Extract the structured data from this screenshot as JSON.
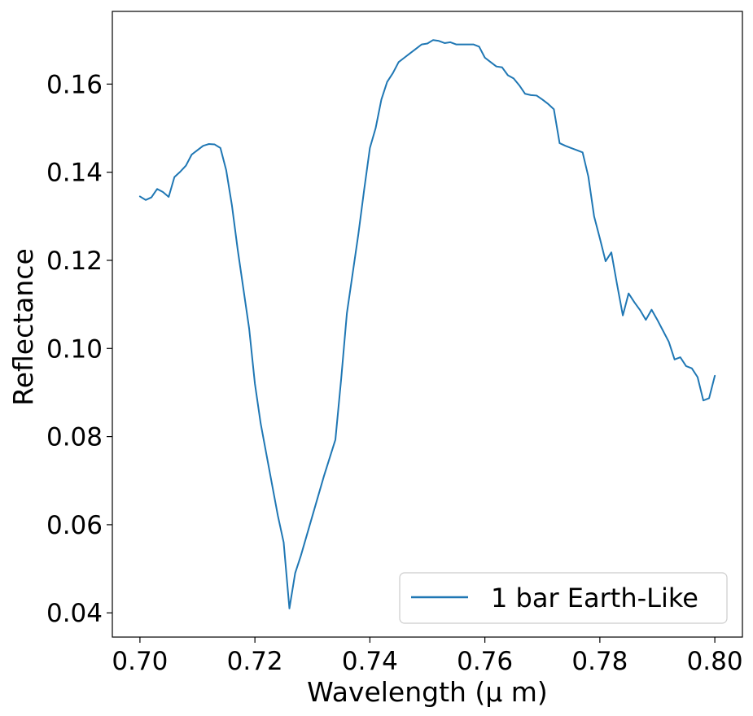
{
  "chart_data": {
    "type": "line",
    "xlabel": "Wavelength (μ m)",
    "ylabel": "Reflectance",
    "xlim": [
      0.6952,
      0.8048
    ],
    "ylim": [
      0.0345,
      0.1765
    ],
    "xticks": [
      "0.70",
      "0.72",
      "0.74",
      "0.76",
      "0.78",
      "0.80"
    ],
    "yticks": [
      "0.04",
      "0.06",
      "0.08",
      "0.10",
      "0.12",
      "0.14",
      "0.16"
    ],
    "grid": false,
    "legend_position": "bottom-right",
    "line_color": "#1f77b4",
    "series": [
      {
        "name": "1 bar Earth-Like",
        "x": [
          0.7,
          0.701,
          0.702,
          0.703,
          0.704,
          0.705,
          0.706,
          0.707,
          0.708,
          0.709,
          0.71,
          0.711,
          0.712,
          0.713,
          0.714,
          0.715,
          0.716,
          0.717,
          0.718,
          0.719,
          0.72,
          0.721,
          0.722,
          0.723,
          0.724,
          0.725,
          0.726,
          0.727,
          0.728,
          0.73,
          0.732,
          0.734,
          0.735,
          0.736,
          0.737,
          0.738,
          0.739,
          0.74,
          0.741,
          0.742,
          0.743,
          0.744,
          0.745,
          0.746,
          0.747,
          0.748,
          0.749,
          0.75,
          0.751,
          0.752,
          0.753,
          0.754,
          0.755,
          0.756,
          0.757,
          0.758,
          0.759,
          0.76,
          0.761,
          0.762,
          0.763,
          0.764,
          0.765,
          0.766,
          0.767,
          0.768,
          0.769,
          0.77,
          0.771,
          0.772,
          0.773,
          0.774,
          0.775,
          0.776,
          0.777,
          0.778,
          0.779,
          0.78,
          0.781,
          0.782,
          0.783,
          0.784,
          0.785,
          0.786,
          0.787,
          0.788,
          0.789,
          0.79,
          0.791,
          0.792,
          0.793,
          0.794,
          0.795,
          0.796,
          0.797,
          0.798,
          0.799,
          0.8
        ],
        "y": [
          0.1345,
          0.1337,
          0.1343,
          0.1362,
          0.1355,
          0.1344,
          0.1389,
          0.1401,
          0.1415,
          0.144,
          0.145,
          0.146,
          0.1464,
          0.1463,
          0.1455,
          0.1405,
          0.1325,
          0.1225,
          0.1135,
          0.1045,
          0.092,
          0.083,
          0.076,
          0.069,
          0.062,
          0.056,
          0.041,
          0.049,
          0.053,
          0.062,
          0.071,
          0.0793,
          0.093,
          0.108,
          0.117,
          0.126,
          0.136,
          0.1455,
          0.15,
          0.1565,
          0.1605,
          0.1625,
          0.165,
          0.166,
          0.167,
          0.168,
          0.169,
          0.1692,
          0.17,
          0.1698,
          0.1693,
          0.1695,
          0.169,
          0.169,
          0.169,
          0.169,
          0.1685,
          0.166,
          0.165,
          0.164,
          0.1638,
          0.162,
          0.1613,
          0.1597,
          0.1578,
          0.1575,
          0.1574,
          0.1565,
          0.1555,
          0.1543,
          0.1466,
          0.146,
          0.1455,
          0.145,
          0.1445,
          0.139,
          0.13,
          0.125,
          0.1198,
          0.1218,
          0.1145,
          0.1075,
          0.1125,
          0.1105,
          0.1087,
          0.1065,
          0.1088,
          0.1065,
          0.104,
          0.1015,
          0.0975,
          0.098,
          0.096,
          0.0955,
          0.0935,
          0.0882,
          0.0887,
          0.0938
        ]
      }
    ]
  }
}
